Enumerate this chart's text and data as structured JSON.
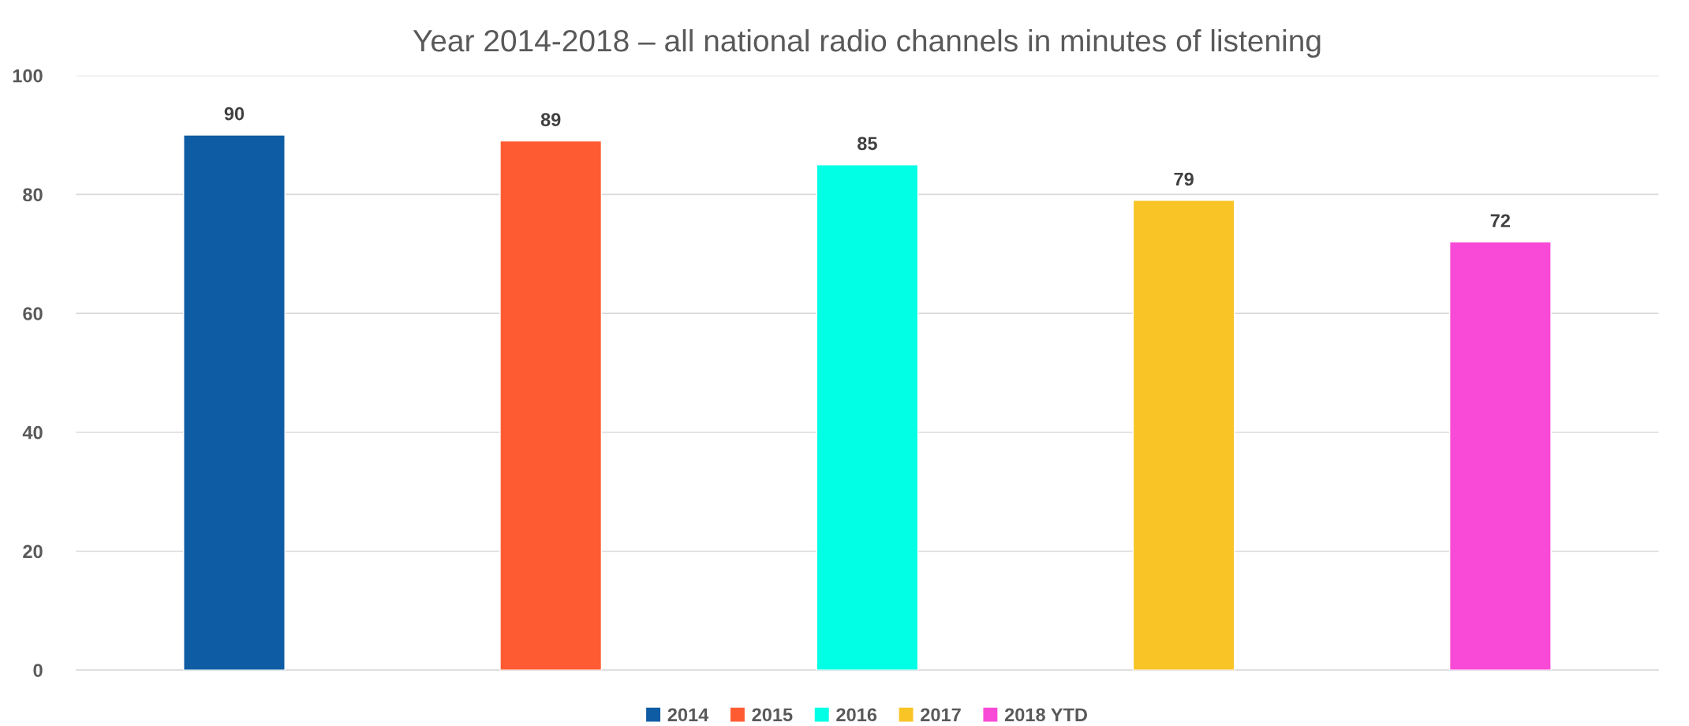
{
  "chart_data": {
    "type": "bar",
    "title": "Year 2014-2018 – all national radio channels in minutes of listening",
    "categories": [
      null,
      null,
      null,
      null,
      null
    ],
    "series": [
      {
        "name": "2014",
        "color": "#0e5ca4",
        "values": [
          90,
          null,
          null,
          null,
          null
        ]
      },
      {
        "name": "2015",
        "color": "#ff5b33",
        "values": [
          null,
          89,
          null,
          null,
          null
        ]
      },
      {
        "name": "2016",
        "color": "#00ffe4",
        "values": [
          null,
          null,
          85,
          null,
          null
        ]
      },
      {
        "name": "2017",
        "color": "#f8c426",
        "values": [
          null,
          null,
          null,
          79,
          null
        ]
      },
      {
        "name": "2018 YTD",
        "color": "#f84ad6",
        "values": [
          null,
          null,
          null,
          null,
          72
        ]
      }
    ],
    "ylim": [
      0,
      100
    ],
    "yticks": [
      0,
      20,
      40,
      60,
      80,
      100
    ],
    "grid": "y",
    "legend": "bottom",
    "data_labels": true
  }
}
